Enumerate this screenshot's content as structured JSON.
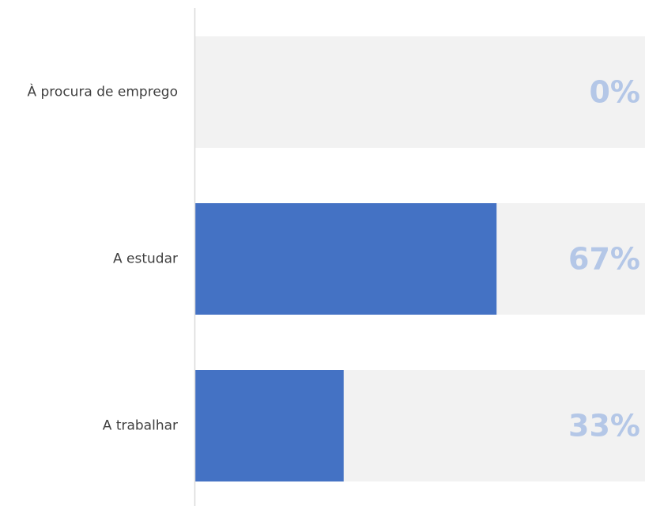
{
  "chart_data": {
    "type": "bar",
    "orientation": "horizontal",
    "categories": [
      "À procura de emprego",
      "A estudar",
      "A trabalhar"
    ],
    "values": [
      0,
      67,
      33
    ],
    "data_labels": [
      "0%",
      "67%",
      "33%"
    ],
    "xlim": [
      0,
      100
    ],
    "grid": false,
    "legend": "none"
  },
  "colors": {
    "bar": "#4472c4",
    "track": "#f2f2f2",
    "data_label": "#b4c7e7",
    "axis": "#d9d9d9",
    "category_text": "#404040"
  }
}
